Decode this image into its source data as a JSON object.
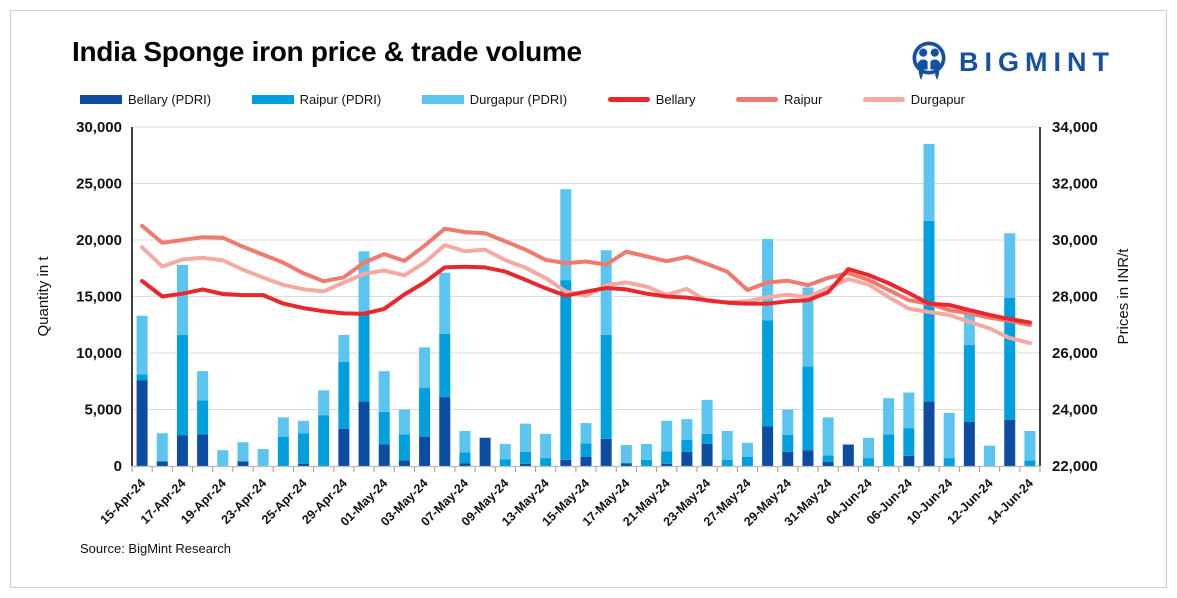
{
  "header": {
    "title": "India Sponge iron price & trade volume",
    "logo_text": "BIGMINT",
    "logo_color": "#17509e"
  },
  "source_note": "Source: BigMint Research",
  "legend": [
    {
      "label": "Bellary (PDRI)",
      "type": "bar",
      "color": "#0d4da1"
    },
    {
      "label": "Raipur (PDRI)",
      "type": "bar",
      "color": "#00a0de"
    },
    {
      "label": "Durgapur (PDRI)",
      "type": "bar",
      "color": "#5bc5f0"
    },
    {
      "label": "Bellary",
      "type": "line",
      "color": "#e8282d"
    },
    {
      "label": "Raipur",
      "type": "line",
      "color": "#f07a6d"
    },
    {
      "label": "Durgapur",
      "type": "line",
      "color": "#f4aaa3"
    }
  ],
  "chart_data": {
    "type": "bar+line combo (stacked volume bars, price lines)",
    "title": "India Sponge iron price & trade volume",
    "grid": true,
    "legend_position": "top",
    "left_axis": {
      "label": "Quantity in t",
      "min": 0,
      "max": 30000,
      "step": 5000
    },
    "right_axis": {
      "label": "Prices in INR/t",
      "min": 22000,
      "max": 34000,
      "step": 2000
    },
    "x_label_every": 2,
    "categories": [
      "15-Apr-24",
      "16-Apr-24",
      "17-Apr-24",
      "18-Apr-24",
      "19-Apr-24",
      "22-Apr-24",
      "23-Apr-24",
      "24-Apr-24",
      "25-Apr-24",
      "26-Apr-24",
      "29-Apr-24",
      "30-Apr-24",
      "01-May-24",
      "02-May-24",
      "03-May-24",
      "06-May-24",
      "07-May-24",
      "08-May-24",
      "09-May-24",
      "10-May-24",
      "13-May-24",
      "14-May-24",
      "15-May-24",
      "16-May-24",
      "17-May-24",
      "20-May-24",
      "21-May-24",
      "22-May-24",
      "23-May-24",
      "24-May-24",
      "27-May-24",
      "28-May-24",
      "29-May-24",
      "30-May-24",
      "31-May-24",
      "03-Jun-24",
      "04-Jun-24",
      "05-Jun-24",
      "06-Jun-24",
      "07-Jun-24",
      "10-Jun-24",
      "11-Jun-24",
      "12-Jun-24",
      "13-Jun-24",
      "14-Jun-24"
    ],
    "bar_series": [
      {
        "name": "Bellary (PDRI)",
        "axis": "left",
        "color": "#0d4da1",
        "values": [
          7600,
          400,
          2700,
          2800,
          0,
          400,
          0,
          0,
          200,
          0,
          3300,
          5700,
          1900,
          500,
          2600,
          6100,
          250,
          2500,
          0,
          200,
          0,
          550,
          800,
          2400,
          250,
          0,
          200,
          1250,
          1950,
          0,
          0,
          3500,
          1250,
          1400,
          350,
          1900,
          0,
          0,
          900,
          5700,
          0,
          3900,
          0,
          4100,
          0
        ]
      },
      {
        "name": "Raipur (PDRI)",
        "axis": "left",
        "color": "#00a0de",
        "values": [
          500,
          0,
          8900,
          3000,
          0,
          0,
          0,
          2600,
          2700,
          4500,
          5900,
          7800,
          2900,
          2300,
          4300,
          5600,
          950,
          0,
          600,
          1050,
          700,
          15900,
          1200,
          9200,
          0,
          550,
          1100,
          1050,
          900,
          550,
          800,
          9400,
          1500,
          7400,
          600,
          0,
          700,
          2800,
          2450,
          16000,
          700,
          6800,
          0,
          10800,
          500
        ]
      },
      {
        "name": "Durgapur (PDRI)",
        "axis": "left",
        "color": "#5bc5f0",
        "values": [
          5200,
          2500,
          6200,
          2600,
          1400,
          1700,
          1500,
          1700,
          1100,
          2200,
          2400,
          5500,
          3600,
          2200,
          3600,
          5400,
          1900,
          0,
          1350,
          2500,
          2150,
          8050,
          1800,
          7500,
          1600,
          1400,
          2700,
          1850,
          3000,
          2550,
          1250,
          7200,
          2250,
          7000,
          3350,
          0,
          1800,
          3200,
          3150,
          6800,
          4000,
          3200,
          1800,
          5700,
          2600
        ]
      }
    ],
    "line_series": [
      {
        "name": "Bellary",
        "axis": "right",
        "color": "#e8282d",
        "values": [
          28550,
          28000,
          28100,
          28250,
          28090,
          28050,
          28050,
          27750,
          27590,
          27480,
          27400,
          27390,
          27560,
          28070,
          28500,
          29030,
          29050,
          29030,
          28880,
          28590,
          28290,
          28030,
          28170,
          28300,
          28250,
          28100,
          28000,
          27960,
          27870,
          27780,
          27750,
          27750,
          27830,
          27870,
          28150,
          28970,
          28760,
          28470,
          28120,
          27750,
          27700,
          27520,
          27350,
          27200,
          27080
        ]
      },
      {
        "name": "Raipur",
        "axis": "right",
        "color": "#f07a6d",
        "values": [
          30500,
          29900,
          30000,
          30100,
          30080,
          29760,
          29480,
          29200,
          28820,
          28540,
          28680,
          29200,
          29500,
          29260,
          29800,
          30400,
          30280,
          30240,
          29950,
          29660,
          29300,
          29180,
          29240,
          29130,
          29590,
          29420,
          29250,
          29400,
          29150,
          28880,
          28230,
          28500,
          28560,
          28400,
          28660,
          28830,
          28590,
          28230,
          27870,
          27750,
          27520,
          27400,
          27250,
          27140,
          26990
        ]
      },
      {
        "name": "Durgapur",
        "axis": "right",
        "color": "#f4aaa3",
        "values": [
          29740,
          29060,
          29310,
          29370,
          29280,
          28950,
          28670,
          28410,
          28260,
          28180,
          28500,
          28800,
          28920,
          28750,
          29200,
          29820,
          29600,
          29660,
          29290,
          29020,
          28650,
          28180,
          28020,
          28400,
          28500,
          28350,
          28060,
          28270,
          27830,
          27800,
          27830,
          27980,
          28060,
          27980,
          28300,
          28620,
          28420,
          27980,
          27570,
          27450,
          27350,
          27100,
          26870,
          26530,
          26350
        ]
      }
    ]
  }
}
